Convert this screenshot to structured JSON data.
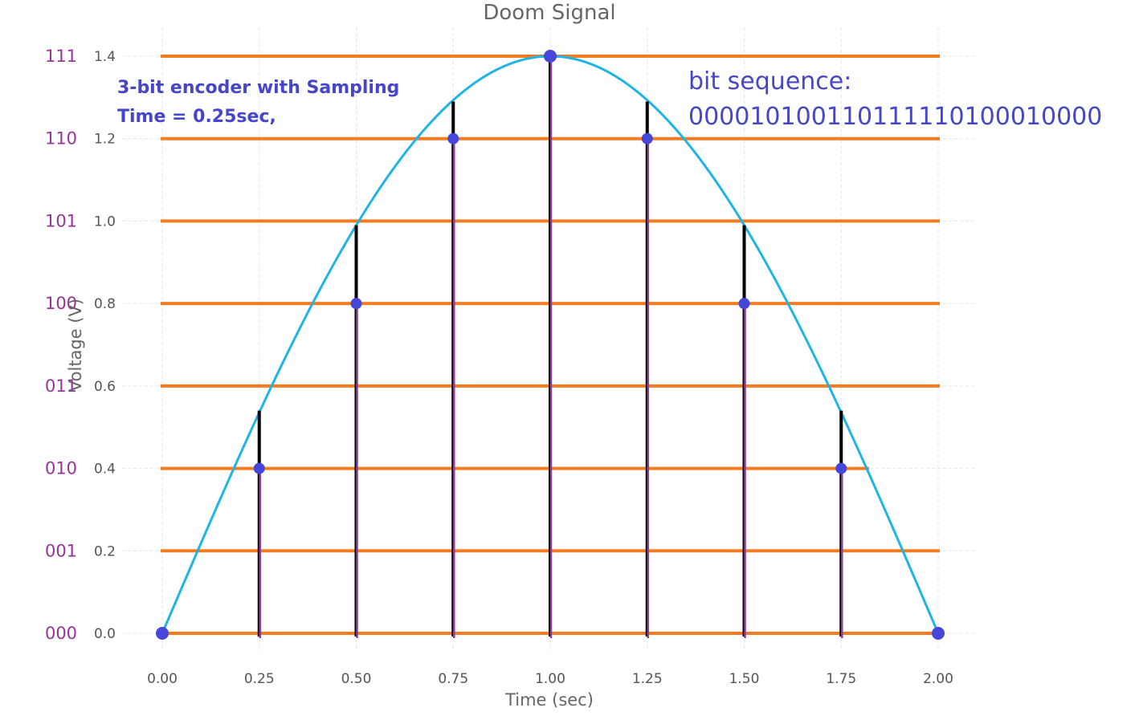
{
  "chart_data": {
    "type": "line",
    "title": "Doom Signal",
    "xlabel": "Time (sec)",
    "ylabel": "Voltage (V)",
    "xlim": [
      0,
      2
    ],
    "ylim": [
      0,
      1.4
    ],
    "x_ticks": [
      "0.00",
      "0.25",
      "0.50",
      "0.75",
      "1.00",
      "1.25",
      "1.50",
      "1.75",
      "2.00"
    ],
    "y_ticks": [
      "0.0",
      "0.2",
      "0.4",
      "0.6",
      "0.8",
      "1.0",
      "1.2",
      "1.4"
    ],
    "grid": true,
    "signal": {
      "function": "1.4*sin(pi*t/2)",
      "color": "#1fb4e6"
    },
    "sample_times": [
      0,
      0.25,
      0.5,
      0.75,
      1.0,
      1.25,
      1.5,
      1.75,
      2.0
    ],
    "true_values": [
      0,
      0.54,
      0.99,
      1.29,
      1.4,
      1.29,
      0.99,
      0.54,
      0
    ],
    "quantized_values": [
      0,
      0.4,
      0.8,
      1.2,
      1.4,
      1.2,
      0.8,
      0.4,
      0
    ],
    "levels": [
      {
        "value": 0.0,
        "code": "000"
      },
      {
        "value": 0.2,
        "code": "001"
      },
      {
        "value": 0.4,
        "code": "010"
      },
      {
        "value": 0.6,
        "code": "011"
      },
      {
        "value": 0.8,
        "code": "100"
      },
      {
        "value": 1.0,
        "code": "101"
      },
      {
        "value": 1.2,
        "code": "110"
      },
      {
        "value": 1.4,
        "code": "111"
      }
    ],
    "annotations": {
      "encoder_line1": "3-bit encoder with Sampling",
      "encoder_line2": "Time = 0.25sec,",
      "bit_label": "bit sequence:",
      "bit_sequence": "000010100110111110100010000"
    },
    "colors": {
      "level_lines": "#f47b20",
      "markers": "#4646d8",
      "stems": "#000000",
      "quantized_stems": "#8e3c9a",
      "codes": "#993399"
    }
  }
}
